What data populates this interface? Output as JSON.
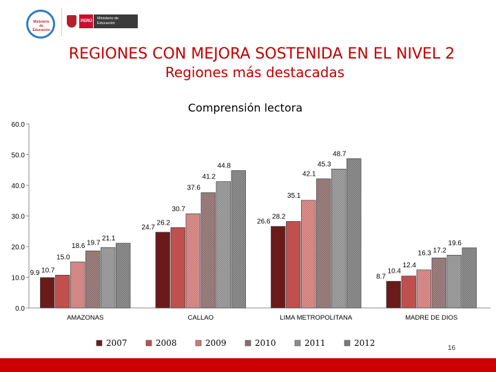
{
  "header": {
    "logo_text": "Ministerio de Educación",
    "peru_label": "PERÚ",
    "ministry_label": "Ministerio de Educación"
  },
  "title_main": "REGIONES CON MEJORA SOSTENIDA EN EL NIVEL 2",
  "title_sub": "Regiones más destacadas",
  "page_number": "16",
  "colors": {
    "title": "#c00000",
    "footer": "#cc0000",
    "series": [
      "#6b1a1a",
      "#c0504d",
      "#cf7b78",
      "#8c6c6c",
      "#8e8e8e",
      "#7a7a7a"
    ]
  },
  "chart_data": {
    "type": "bar",
    "title": "Comprensión lectora",
    "categories": [
      "AMAZONAS",
      "CALLAO",
      "LIMA METROPOLITANA",
      "MADRE DE DIOS"
    ],
    "series": [
      {
        "name": "2007",
        "values": [
          9.9,
          24.7,
          26.6,
          8.7
        ]
      },
      {
        "name": "2008",
        "values": [
          10.7,
          26.2,
          28.2,
          10.4
        ]
      },
      {
        "name": "2009",
        "values": [
          15.0,
          30.7,
          35.1,
          12.4
        ]
      },
      {
        "name": "2010",
        "values": [
          18.6,
          37.6,
          42.1,
          16.3
        ]
      },
      {
        "name": "2011",
        "values": [
          19.7,
          41.2,
          45.3,
          17.2
        ]
      },
      {
        "name": "2012",
        "values": [
          21.1,
          44.8,
          48.7,
          19.6
        ]
      }
    ],
    "ylim": [
      0,
      60
    ],
    "yticks": [
      "0.0",
      "10.0",
      "20.0",
      "30.0",
      "40.0",
      "50.0",
      "60.0"
    ],
    "grid": false,
    "legend_position": "bottom"
  }
}
